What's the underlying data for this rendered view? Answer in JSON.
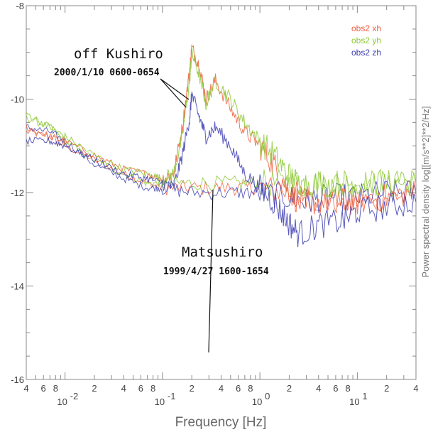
{
  "colors": {
    "xh": "#ee6040",
    "yh": "#8cc832",
    "zh": "#3c3cb0",
    "frame": "#888888"
  },
  "annotations": {
    "kushiro_title": "off Kushiro",
    "kushiro_sub": "2000/1/10 0600-0654",
    "matsushiro_title": "Matsushiro",
    "matsushiro_sub": "1999/4/27 1600-1654"
  },
  "chart_data": {
    "type": "line",
    "xlabel": "Frequency [Hz]",
    "ylabel": "Power spectral density log[[m/s**2]**2/Hz]",
    "xscale": "log",
    "xlim": [
      0.004,
      40
    ],
    "ylim": [
      -16,
      -8
    ],
    "y_ticks": [
      "-8",
      "-10",
      "-12",
      "-14",
      "-16"
    ],
    "x_major_ticks": [
      {
        "value": 0.01,
        "label": "10",
        "exp": "-2"
      },
      {
        "value": 0.1,
        "label": "10",
        "exp": "-1"
      },
      {
        "value": 1,
        "label": "10",
        "exp": "0"
      },
      {
        "value": 10,
        "label": "10",
        "exp": "1"
      }
    ],
    "x_minor_labels": [
      {
        "value": 0.004,
        "label": "4"
      },
      {
        "value": 0.006,
        "label": "6"
      },
      {
        "value": 0.008,
        "label": "8"
      },
      {
        "value": 0.02,
        "label": "2"
      },
      {
        "value": 0.04,
        "label": "4"
      },
      {
        "value": 0.06,
        "label": "6"
      },
      {
        "value": 0.08,
        "label": "8"
      },
      {
        "value": 0.2,
        "label": "2"
      },
      {
        "value": 0.4,
        "label": "4"
      },
      {
        "value": 0.6,
        "label": "6"
      },
      {
        "value": 0.8,
        "label": "8"
      },
      {
        "value": 2,
        "label": "2"
      },
      {
        "value": 4,
        "label": "4"
      },
      {
        "value": 6,
        "label": "6"
      },
      {
        "value": 8,
        "label": "8"
      },
      {
        "value": 20,
        "label": "2"
      },
      {
        "value": 40,
        "label": "4"
      }
    ],
    "legend": [
      "obs2 xh",
      "obs2 yh",
      "obs2 zh"
    ],
    "legend_position": "top-right",
    "series": [
      {
        "name": "obs2 xh",
        "group": "off Kushiro",
        "x": [
          0.004,
          0.007,
          0.01,
          0.02,
          0.04,
          0.07,
          0.1,
          0.13,
          0.16,
          0.19,
          0.2,
          0.24,
          0.28,
          0.35,
          0.5,
          0.7,
          1.0,
          1.4,
          1.9,
          2.5,
          4,
          7,
          10,
          20,
          40
        ],
        "y": [
          -10.6,
          -10.8,
          -10.9,
          -11.2,
          -11.5,
          -11.6,
          -11.7,
          -11.6,
          -10.6,
          -9.4,
          -8.9,
          -9.3,
          -10.0,
          -9.6,
          -10.2,
          -10.7,
          -11.0,
          -11.4,
          -11.9,
          -12.2,
          -12.2,
          -12.2,
          -12.2,
          -12.1,
          -12.0
        ]
      },
      {
        "name": "obs2 yh",
        "group": "off Kushiro",
        "x": [
          0.004,
          0.007,
          0.01,
          0.02,
          0.04,
          0.07,
          0.1,
          0.13,
          0.16,
          0.19,
          0.2,
          0.24,
          0.28,
          0.35,
          0.5,
          0.7,
          1.0,
          1.4,
          1.9,
          2.5,
          4,
          7,
          10,
          20,
          40
        ],
        "y": [
          -10.3,
          -10.6,
          -10.8,
          -11.2,
          -11.5,
          -11.6,
          -11.7,
          -11.6,
          -10.8,
          -9.6,
          -9.0,
          -9.5,
          -10.1,
          -9.6,
          -10.0,
          -10.5,
          -10.9,
          -11.2,
          -11.6,
          -11.8,
          -11.8,
          -11.8,
          -11.8,
          -11.8,
          -11.8
        ]
      },
      {
        "name": "obs2 zh",
        "group": "off Kushiro",
        "x": [
          0.004,
          0.007,
          0.01,
          0.02,
          0.04,
          0.07,
          0.1,
          0.13,
          0.16,
          0.19,
          0.2,
          0.24,
          0.28,
          0.35,
          0.5,
          0.7,
          1.0,
          1.4,
          1.9,
          2.5,
          4,
          7,
          10,
          20,
          40
        ],
        "y": [
          -10.9,
          -10.9,
          -11.0,
          -11.3,
          -11.6,
          -11.7,
          -11.8,
          -11.9,
          -11.2,
          -10.4,
          -9.9,
          -10.4,
          -10.8,
          -10.6,
          -11.0,
          -11.6,
          -11.9,
          -12.2,
          -12.6,
          -12.9,
          -12.7,
          -12.6,
          -12.4,
          -12.3,
          -12.2
        ]
      },
      {
        "name": "obs2 xh",
        "group": "Matsushiro",
        "x": [
          0.004,
          0.007,
          0.01,
          0.02,
          0.04,
          0.07,
          0.1,
          0.2,
          0.5,
          1.0,
          2.0,
          3.0,
          5,
          10,
          20,
          40
        ],
        "y": [
          -10.7,
          -10.8,
          -11.0,
          -11.3,
          -11.6,
          -11.8,
          -11.9,
          -11.9,
          -11.9,
          -11.9,
          -12.0,
          -12.1,
          -12.2,
          -12.2,
          -12.1,
          -12.0
        ]
      },
      {
        "name": "obs2 yh",
        "group": "Matsushiro",
        "x": [
          0.004,
          0.007,
          0.01,
          0.02,
          0.04,
          0.07,
          0.1,
          0.2,
          0.5,
          1.0,
          2.0,
          3.0,
          5,
          10,
          20,
          40
        ],
        "y": [
          -10.4,
          -10.6,
          -10.9,
          -11.3,
          -11.6,
          -11.8,
          -11.8,
          -11.8,
          -11.8,
          -11.8,
          -11.8,
          -11.8,
          -11.8,
          -11.8,
          -11.8,
          -11.8
        ]
      },
      {
        "name": "obs2 zh",
        "group": "Matsushiro",
        "x": [
          0.004,
          0.007,
          0.01,
          0.02,
          0.04,
          0.07,
          0.1,
          0.2,
          0.5,
          1.0,
          2.0,
          3.0,
          5,
          10,
          20,
          40
        ],
        "y": [
          -10.6,
          -10.7,
          -10.9,
          -11.4,
          -11.7,
          -11.9,
          -11.9,
          -12.0,
          -12.0,
          -12.0,
          -12.1,
          -12.2,
          -12.1,
          -12.1,
          -12.0,
          -12.0
        ]
      }
    ]
  }
}
